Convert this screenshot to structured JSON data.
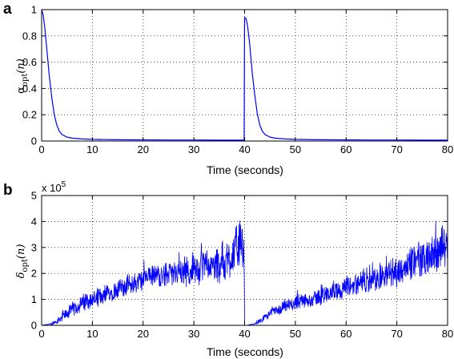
{
  "chart_data": [
    {
      "panel": "a",
      "type": "line",
      "xlabel": "Time (seconds)",
      "ylabel": {
        "symbol": "α",
        "sub": "opt",
        "arg": "(n)"
      },
      "xlim": [
        0,
        80
      ],
      "ylim": [
        0,
        1
      ],
      "xticks": [
        0,
        10,
        20,
        30,
        40,
        50,
        60,
        70,
        80
      ],
      "yticks": [
        0,
        0.2,
        0.4,
        0.6,
        0.8,
        1
      ],
      "ytick_labels": [
        "0",
        "0.2",
        "0.4",
        "0.6",
        "0.8",
        "1"
      ],
      "grid": true,
      "line_color": "#0000ff",
      "series": [
        {
          "x": [
            0,
            0.3,
            0.6,
            1,
            1.5,
            2,
            2.5,
            3,
            3.5,
            4,
            5,
            6,
            8,
            10,
            15,
            20,
            25,
            30,
            35,
            39.9,
            40,
            40.3,
            40.6,
            41,
            41.5,
            42,
            42.5,
            43,
            43.5,
            44,
            45,
            46,
            48,
            50,
            55,
            60,
            65,
            70,
            75,
            80
          ],
          "y": [
            1,
            0.96,
            0.87,
            0.71,
            0.5,
            0.33,
            0.2,
            0.12,
            0.075,
            0.05,
            0.03,
            0.022,
            0.016,
            0.013,
            0.01,
            0.009,
            0.008,
            0.008,
            0.007,
            0.007,
            0.94,
            0.93,
            0.87,
            0.74,
            0.52,
            0.35,
            0.21,
            0.12,
            0.075,
            0.05,
            0.03,
            0.022,
            0.016,
            0.013,
            0.01,
            0.009,
            0.008,
            0.008,
            0.007,
            0.007
          ]
        }
      ]
    },
    {
      "panel": "b",
      "type": "line",
      "xlabel": "Time (seconds)",
      "ylabel": {
        "symbol": "δ",
        "sub": "opt",
        "arg": "(n)"
      },
      "multiplier": {
        "base": "x 10",
        "exp": "5"
      },
      "xlim": [
        0,
        80
      ],
      "ylim": [
        0,
        5
      ],
      "xticks": [
        0,
        10,
        20,
        30,
        40,
        50,
        60,
        70,
        80
      ],
      "yticks": [
        0,
        1,
        2,
        3,
        4,
        5
      ],
      "ytick_labels": [
        "0",
        "1",
        "2",
        "3",
        "4",
        "5"
      ],
      "grid": true,
      "line_color": "#0000ff",
      "series": [
        {
          "x": [
            0,
            2,
            4,
            6,
            8,
            10,
            12,
            14,
            16,
            18,
            20,
            22,
            24,
            26,
            28,
            30,
            32,
            34,
            36,
            38,
            39,
            39.9,
            40,
            40.5,
            42,
            44,
            46,
            48,
            50,
            52,
            54,
            56,
            58,
            60,
            62,
            64,
            66,
            68,
            70,
            72,
            74,
            76,
            78,
            80
          ],
          "y": [
            0,
            0.05,
            0.3,
            0.6,
            0.85,
            1.0,
            1.15,
            1.3,
            1.5,
            1.6,
            1.75,
            1.9,
            1.95,
            2.0,
            2.05,
            2.15,
            2.25,
            2.25,
            2.45,
            2.8,
            3.2,
            2.7,
            0,
            0,
            0.05,
            0.3,
            0.55,
            0.7,
            0.85,
            0.95,
            1.05,
            1.2,
            1.3,
            1.45,
            1.55,
            1.65,
            1.8,
            1.95,
            2.1,
            2.3,
            2.5,
            2.6,
            2.8,
            3.0
          ],
          "noise_amplitude": [
            0,
            0.05,
            0.2,
            0.3,
            0.35,
            0.35,
            0.4,
            0.4,
            0.45,
            0.45,
            0.5,
            0.5,
            0.5,
            0.55,
            0.6,
            0.65,
            0.7,
            0.8,
            0.9,
            1.0,
            1.1,
            0.8,
            0,
            0,
            0.05,
            0.15,
            0.2,
            0.25,
            0.3,
            0.3,
            0.35,
            0.4,
            0.4,
            0.45,
            0.5,
            0.5,
            0.55,
            0.6,
            0.65,
            0.7,
            0.75,
            0.8,
            0.85,
            0.9
          ]
        }
      ]
    }
  ]
}
